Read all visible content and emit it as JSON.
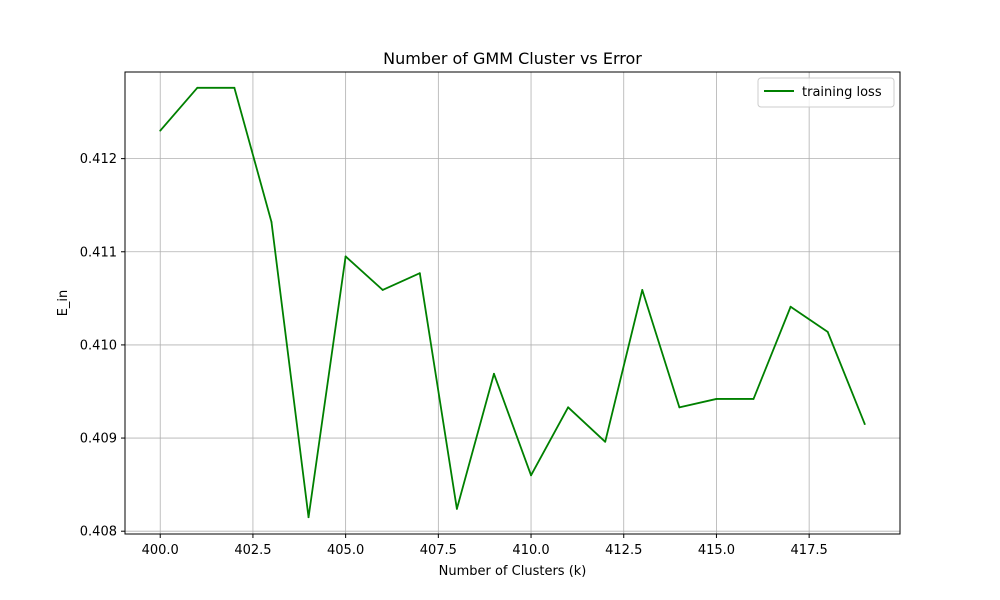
{
  "chart_data": {
    "type": "line",
    "title": "Number of GMM Cluster vs Error",
    "xlabel": "Number of Clusters (k)",
    "ylabel": "E_in",
    "xlim": [
      399.05,
      419.95
    ],
    "ylim": [
      0.40797,
      0.41293
    ],
    "x_ticks": [
      400.0,
      402.5,
      405.0,
      407.5,
      410.0,
      412.5,
      415.0,
      417.5
    ],
    "x_tick_labels": [
      "400.0",
      "402.5",
      "405.0",
      "407.5",
      "410.0",
      "412.5",
      "415.0",
      "417.5"
    ],
    "y_ticks": [
      0.408,
      0.409,
      0.41,
      0.411,
      0.412
    ],
    "y_tick_labels": [
      "0.408",
      "0.409",
      "0.410",
      "0.411",
      "0.412"
    ],
    "grid": true,
    "legend": {
      "placement": "top-right"
    },
    "series": [
      {
        "name": "training loss",
        "color": "#008000",
        "x": [
          400,
          401,
          402,
          403,
          404,
          405,
          406,
          407,
          408,
          409,
          410,
          411,
          412,
          413,
          414,
          415,
          416,
          417,
          418,
          419
        ],
        "y": [
          0.4123,
          0.41276,
          0.41276,
          0.41132,
          0.40815,
          0.41095,
          0.41059,
          0.41077,
          0.40824,
          0.40969,
          0.4086,
          0.40933,
          0.40896,
          0.41059,
          0.40933,
          0.40942,
          0.40942,
          0.41041,
          0.41014,
          0.40915
        ]
      }
    ]
  }
}
